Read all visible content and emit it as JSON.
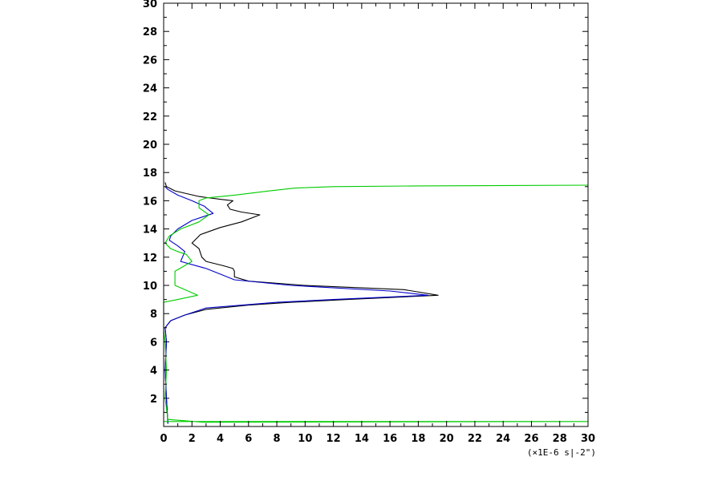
{
  "chart_data": {
    "type": "line",
    "title": "",
    "xlabel": "",
    "ylabel": "",
    "x_unit_label": "(×1E-6 s|-2\")",
    "xlim": [
      0,
      30
    ],
    "ylim": [
      0,
      30
    ],
    "x_ticks": [
      0,
      2,
      4,
      6,
      8,
      10,
      12,
      14,
      16,
      18,
      20,
      22,
      24,
      26,
      28,
      30
    ],
    "y_ticks": [
      2,
      4,
      6,
      8,
      10,
      12,
      14,
      16,
      18,
      20,
      22,
      24,
      26,
      28,
      30
    ],
    "grid": false,
    "series": [
      {
        "color": "#000000",
        "points": [
          [
            0.3,
            0.2
          ],
          [
            0.2,
            2
          ],
          [
            0.1,
            4
          ],
          [
            0.2,
            6
          ],
          [
            0.1,
            7
          ],
          [
            0.5,
            7.5
          ],
          [
            1.5,
            7.9
          ],
          [
            3,
            8.3
          ],
          [
            6,
            8.6
          ],
          [
            9,
            8.8
          ],
          [
            13,
            9.0
          ],
          [
            19.4,
            9.3
          ],
          [
            17,
            9.7
          ],
          [
            10,
            10
          ],
          [
            6,
            10.3
          ],
          [
            5,
            10.6
          ],
          [
            5,
            11
          ],
          [
            4.9,
            11.2
          ],
          [
            4.2,
            11.4
          ],
          [
            3,
            11.7
          ],
          [
            2.7,
            12
          ],
          [
            2.5,
            12.6
          ],
          [
            2,
            13
          ],
          [
            2.6,
            13.6
          ],
          [
            4,
            14.1
          ],
          [
            5.5,
            14.5
          ],
          [
            6.8,
            15
          ],
          [
            5.5,
            15.2
          ],
          [
            4.7,
            15.4
          ],
          [
            4.5,
            15.7
          ],
          [
            4.9,
            16
          ],
          [
            4,
            16.1
          ],
          [
            2.5,
            16.3
          ],
          [
            0.8,
            16.7
          ],
          [
            0.2,
            17
          ],
          [
            0.1,
            17.3
          ]
        ]
      },
      {
        "color": "#0000cc",
        "points": [
          [
            0.3,
            0.2
          ],
          [
            0.2,
            2
          ],
          [
            0.1,
            4
          ],
          [
            0.2,
            6
          ],
          [
            0.1,
            7
          ],
          [
            0.5,
            7.5
          ],
          [
            1.5,
            7.9
          ],
          [
            3,
            8.4
          ],
          [
            8,
            8.8
          ],
          [
            12,
            9.0
          ],
          [
            18.7,
            9.3
          ],
          [
            16,
            9.6
          ],
          [
            9,
            10
          ],
          [
            5,
            10.4
          ],
          [
            4,
            10.8
          ],
          [
            3,
            11.2
          ],
          [
            1.2,
            11.7
          ],
          [
            1.5,
            12.4
          ],
          [
            1,
            12.8
          ],
          [
            0.4,
            13.2
          ],
          [
            0.5,
            13.5
          ],
          [
            1,
            14
          ],
          [
            2,
            14.6
          ],
          [
            3.5,
            15.1
          ],
          [
            3,
            15.5
          ],
          [
            2.9,
            15.6
          ],
          [
            2,
            16
          ],
          [
            1,
            16.4
          ],
          [
            0.3,
            16.8
          ],
          [
            0.1,
            17
          ]
        ]
      },
      {
        "color": "#00cc00",
        "points": [
          [
            0,
            0.35
          ],
          [
            30,
            0.35
          ],
          [
            2.8,
            0.3
          ],
          [
            0.3,
            0.5
          ],
          [
            0.1,
            2
          ],
          [
            0.2,
            4
          ],
          [
            0.1,
            6
          ],
          [
            0,
            6.8
          ],
          [
            0,
            8.8
          ],
          [
            1,
            9.0
          ],
          [
            2.4,
            9.3
          ],
          [
            1.5,
            9.7
          ],
          [
            0.8,
            10
          ],
          [
            0.8,
            11
          ],
          [
            2,
            11.7
          ],
          [
            1.6,
            12.2
          ],
          [
            1,
            12.4
          ],
          [
            0.5,
            12.6
          ],
          [
            0.1,
            13
          ],
          [
            0.4,
            13.5
          ],
          [
            1.2,
            14
          ],
          [
            2.5,
            14.5
          ],
          [
            3.2,
            15
          ],
          [
            2.5,
            15.5
          ],
          [
            2.5,
            16
          ],
          [
            3,
            16.2
          ],
          [
            5,
            16.4
          ],
          [
            7.5,
            16.7
          ],
          [
            9.3,
            16.9
          ],
          [
            12,
            17
          ],
          [
            18,
            17.05
          ],
          [
            30,
            17.1
          ]
        ]
      }
    ]
  }
}
